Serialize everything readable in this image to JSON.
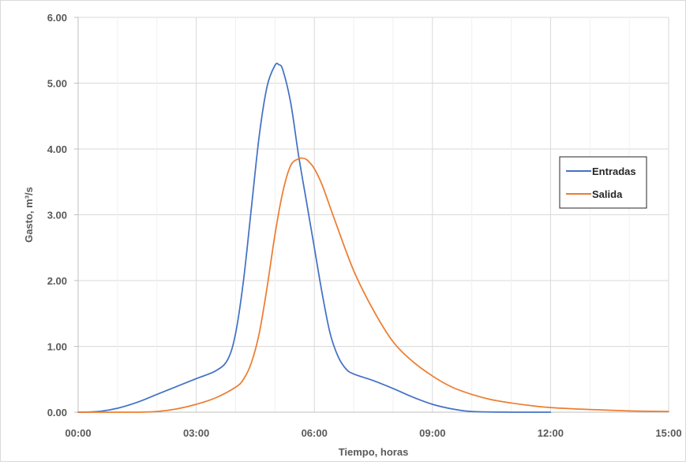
{
  "chart_data": {
    "type": "line",
    "title": "",
    "xlabel": "Tiempo, horas",
    "ylabel": "Gasto, m³/s",
    "xlim": [
      0,
      15
    ],
    "ylim": [
      0,
      6
    ],
    "x_ticks": [
      0,
      3,
      6,
      9,
      12,
      15
    ],
    "x_tick_labels": [
      "00:00",
      "03:00",
      "06:00",
      "09:00",
      "12:00",
      "15:00"
    ],
    "y_ticks": [
      0,
      1,
      2,
      3,
      4,
      5,
      6
    ],
    "y_tick_labels": [
      "0.00",
      "1.00",
      "2.00",
      "3.00",
      "4.00",
      "5.00",
      "6.00"
    ],
    "grid": true,
    "legend_position": "right",
    "series": [
      {
        "name": "Entradas",
        "color": "#4472c4",
        "x": [
          0,
          0.5,
          1,
          1.5,
          2,
          2.5,
          3,
          3.5,
          3.8,
          4,
          4.2,
          4.4,
          4.6,
          4.8,
          5,
          5.1,
          5.2,
          5.4,
          5.6,
          5.8,
          6,
          6.2,
          6.4,
          6.6,
          6.8,
          7,
          7.5,
          8,
          8.5,
          9,
          9.5,
          10,
          11,
          12
        ],
        "y": [
          0,
          0.01,
          0.06,
          0.15,
          0.27,
          0.39,
          0.51,
          0.63,
          0.8,
          1.2,
          2.0,
          3.1,
          4.2,
          4.95,
          5.27,
          5.28,
          5.2,
          4.7,
          3.9,
          3.2,
          2.5,
          1.8,
          1.2,
          0.85,
          0.66,
          0.58,
          0.48,
          0.36,
          0.23,
          0.12,
          0.05,
          0.01,
          0,
          0
        ]
      },
      {
        "name": "Salida",
        "color": "#ed7d31",
        "x": [
          0,
          1,
          1.5,
          2,
          2.5,
          3,
          3.5,
          4,
          4.2,
          4.4,
          4.6,
          4.8,
          5,
          5.2,
          5.4,
          5.6,
          5.7,
          5.8,
          5.9,
          6,
          6.2,
          6.5,
          7,
          7.5,
          8,
          8.5,
          9,
          9.5,
          10,
          10.5,
          11,
          11.5,
          12,
          13,
          14,
          15
        ],
        "y": [
          0,
          0,
          0,
          0.01,
          0.05,
          0.12,
          0.22,
          0.38,
          0.5,
          0.75,
          1.2,
          1.9,
          2.7,
          3.35,
          3.75,
          3.85,
          3.86,
          3.84,
          3.78,
          3.7,
          3.45,
          2.95,
          2.15,
          1.55,
          1.07,
          0.77,
          0.55,
          0.38,
          0.27,
          0.19,
          0.14,
          0.1,
          0.07,
          0.04,
          0.02,
          0.01
        ]
      }
    ]
  }
}
